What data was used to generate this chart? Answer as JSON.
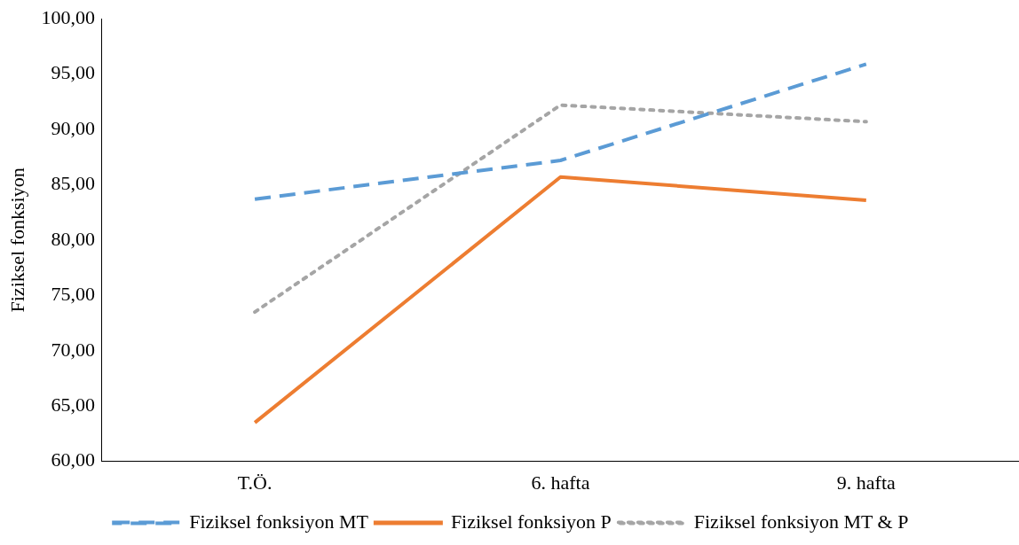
{
  "chart_data": {
    "type": "line",
    "ylabel": "Fiziksel fonksiyon",
    "categories": [
      "T.Ö.",
      "6. hafta",
      "9. hafta"
    ],
    "series": [
      {
        "name": "Fiziksel fonksiyon MT",
        "color": "#5b9bd5",
        "line_style": "dashed",
        "values": [
          83.7,
          87.2,
          95.9
        ]
      },
      {
        "name": "Fiziksel fonksiyon P",
        "color": "#ed7d31",
        "line_style": "solid",
        "values": [
          63.5,
          85.7,
          83.6
        ]
      },
      {
        "name": "Fiziksel fonksiyon MT & P",
        "color": "#a5a5a5",
        "line_style": "dotted",
        "values": [
          73.5,
          92.2,
          90.7
        ]
      }
    ],
    "ylim": [
      60,
      100
    ],
    "yticks": [
      {
        "value": 60,
        "label": "60,00"
      },
      {
        "value": 65,
        "label": "65,00"
      },
      {
        "value": 70,
        "label": "70,00"
      },
      {
        "value": 75,
        "label": "75,00"
      },
      {
        "value": 80,
        "label": "80,00"
      },
      {
        "value": 85,
        "label": "85,00"
      },
      {
        "value": 90,
        "label": "90,00"
      },
      {
        "value": 95,
        "label": "95,00"
      },
      {
        "value": 100,
        "label": "100,00"
      }
    ],
    "grid": false,
    "legend": "bottom",
    "marker": "none"
  }
}
